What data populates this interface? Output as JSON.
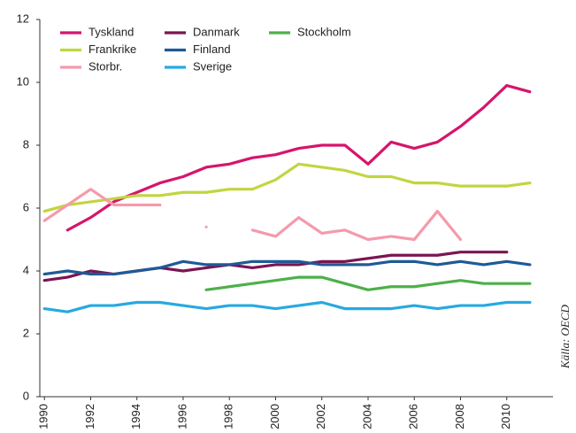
{
  "chart_data": {
    "type": "line",
    "source": "Källa: OECD",
    "x": [
      1990,
      1991,
      1992,
      1993,
      1994,
      1995,
      1996,
      1997,
      1998,
      1999,
      2000,
      2001,
      2002,
      2003,
      2004,
      2005,
      2006,
      2007,
      2008,
      2009,
      2010,
      2011
    ],
    "xlim": [
      1989.8,
      2012
    ],
    "xticks": [
      1990,
      1992,
      1994,
      1996,
      1998,
      2000,
      2002,
      2004,
      2006,
      2008,
      2010
    ],
    "ylim": [
      0,
      12
    ],
    "yticks": [
      0,
      2,
      4,
      6,
      8,
      10,
      12
    ],
    "grid": false,
    "series": [
      {
        "name": "Tyskland",
        "color": "#d6156c",
        "values": [
          null,
          5.3,
          5.7,
          6.2,
          6.5,
          6.8,
          7.0,
          7.3,
          7.4,
          7.6,
          7.7,
          7.9,
          8.0,
          8.0,
          7.4,
          8.1,
          7.9,
          8.1,
          8.6,
          9.2,
          9.9,
          9.7
        ]
      },
      {
        "name": "Frankrike",
        "color": "#c2d540",
        "values": [
          5.9,
          6.1,
          6.2,
          6.3,
          6.4,
          6.4,
          6.5,
          6.5,
          6.6,
          6.6,
          6.9,
          7.4,
          7.3,
          7.2,
          7.0,
          7.0,
          6.8,
          6.8,
          6.7,
          6.7,
          6.7,
          6.8
        ]
      },
      {
        "name": "Storbr.",
        "color": "#f49aac",
        "values": [
          5.6,
          6.1,
          6.6,
          6.1,
          6.1,
          6.1,
          null,
          5.4,
          null,
          5.3,
          5.1,
          5.7,
          5.2,
          5.3,
          5.0,
          5.1,
          5.0,
          5.9,
          5.0,
          null,
          null,
          null
        ]
      },
      {
        "name": "Danmark",
        "color": "#7b1452",
        "values": [
          3.7,
          3.8,
          4.0,
          3.9,
          4.0,
          4.1,
          4.0,
          4.1,
          4.2,
          4.1,
          4.2,
          4.2,
          4.3,
          4.3,
          4.4,
          4.5,
          4.5,
          4.5,
          4.6,
          4.6,
          4.6,
          null
        ]
      },
      {
        "name": "Finland",
        "color": "#1e5a96",
        "values": [
          3.9,
          4.0,
          3.9,
          3.9,
          4.0,
          4.1,
          4.3,
          4.2,
          4.2,
          4.3,
          4.3,
          4.3,
          4.2,
          4.2,
          4.2,
          4.3,
          4.3,
          4.2,
          4.3,
          4.2,
          4.3,
          4.2
        ]
      },
      {
        "name": "Sverige",
        "color": "#27a9e1",
        "values": [
          2.8,
          2.7,
          2.9,
          2.9,
          3.0,
          3.0,
          2.9,
          2.8,
          2.9,
          2.9,
          2.8,
          2.9,
          3.0,
          2.8,
          2.8,
          2.8,
          2.9,
          2.8,
          2.9,
          2.9,
          3.0,
          3.0
        ]
      },
      {
        "name": "Stockholm",
        "color": "#4db04a",
        "values": [
          null,
          null,
          null,
          null,
          null,
          null,
          null,
          3.4,
          3.5,
          3.6,
          3.7,
          3.8,
          3.8,
          3.6,
          3.4,
          3.5,
          3.5,
          3.6,
          3.7,
          3.6,
          3.6,
          3.6
        ]
      }
    ]
  }
}
